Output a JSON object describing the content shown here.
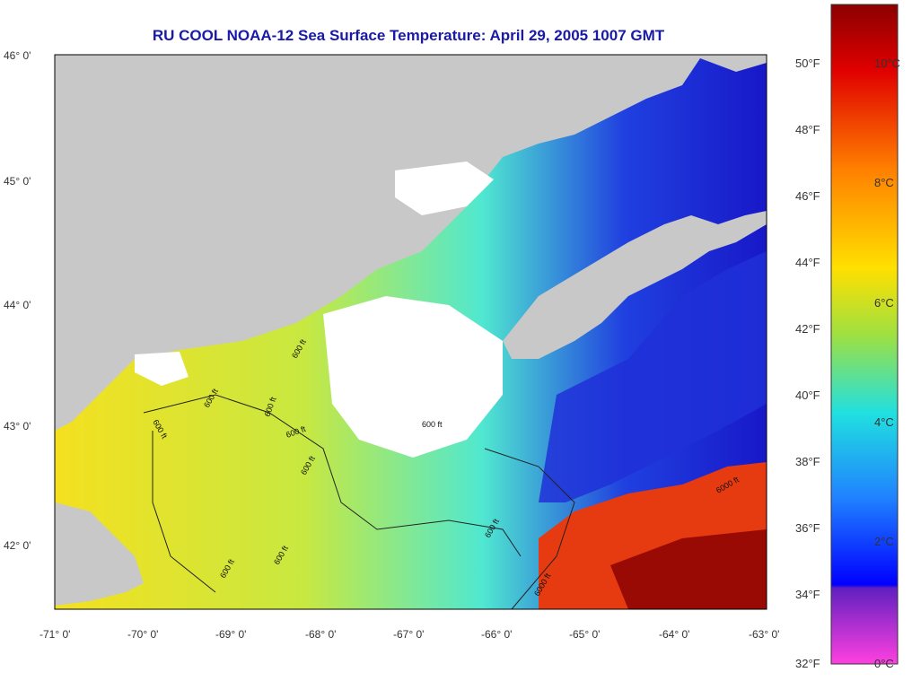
{
  "title": "RU COOL  NOAA-12  Sea Surface Temperature:  April 29, 2005 1007 GMT",
  "lat_ticks": [
    "46° 0'",
    "45° 0'",
    "44° 0'",
    "43° 0'",
    "42° 0'"
  ],
  "lon_ticks": [
    "-71° 0'",
    "-70° 0'",
    "-69° 0'",
    "-68° 0'",
    "-67° 0'",
    "-66° 0'",
    "-65° 0'",
    "-64° 0'",
    "-63° 0'"
  ],
  "colorbar": {
    "f_labels": [
      "50°F",
      "48°F",
      "46°F",
      "44°F",
      "42°F",
      "40°F",
      "38°F",
      "36°F",
      "34°F",
      "32°F"
    ],
    "c_labels": [
      "10°C",
      "8°C",
      "6°C",
      "4°C",
      "2°C",
      "0°C"
    ]
  },
  "contour_labels": [
    "600 ft",
    "600 ft",
    "600 ft",
    "600 ft",
    "600 ft",
    "600 ft",
    "600 ft",
    "600 ft",
    "600 ft",
    "600 ft",
    "6000 ft",
    "6000 ft"
  ],
  "colors": {
    "land": "#c8c8c8",
    "cloud": "#ffffff",
    "title": "#1a1aa8"
  }
}
